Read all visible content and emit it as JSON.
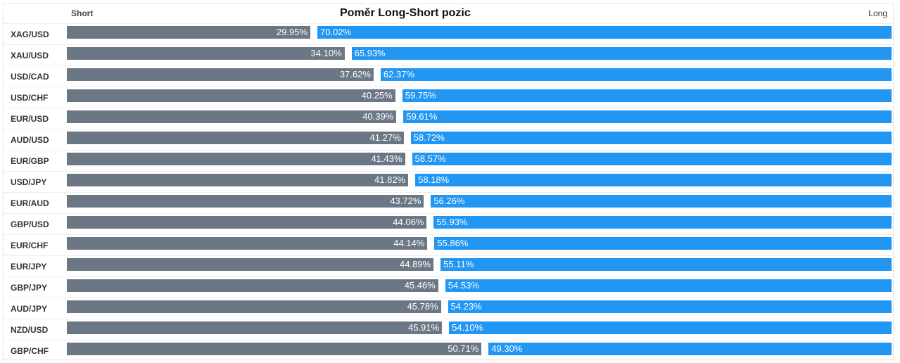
{
  "header": {
    "title": "Poměr Long-Short pozic",
    "short_label": "Short",
    "long_label": "Long"
  },
  "colors": {
    "short": "#6b7785",
    "long": "#2196f3"
  },
  "chart_data": {
    "type": "bar",
    "title": "Poměr Long-Short pozic",
    "xlabel": "",
    "ylabel": "",
    "orientation": "horizontal-stacked",
    "categories": [
      "XAG/USD",
      "XAU/USD",
      "USD/CAD",
      "USD/CHF",
      "EUR/USD",
      "AUD/USD",
      "EUR/GBP",
      "USD/JPY",
      "EUR/AUD",
      "GBP/USD",
      "EUR/CHF",
      "EUR/JPY",
      "GBP/JPY",
      "AUD/JPY",
      "NZD/USD",
      "GBP/CHF"
    ],
    "series": [
      {
        "name": "Short",
        "values": [
          29.95,
          34.1,
          37.62,
          40.25,
          40.39,
          41.27,
          41.43,
          41.82,
          43.72,
          44.06,
          44.14,
          44.89,
          45.46,
          45.78,
          45.91,
          50.71
        ]
      },
      {
        "name": "Long",
        "values": [
          70.02,
          65.93,
          62.37,
          59.75,
          59.61,
          58.72,
          58.57,
          58.18,
          56.26,
          55.93,
          55.86,
          55.11,
          54.53,
          54.23,
          54.1,
          49.3
        ]
      }
    ],
    "value_labels": {
      "short": [
        "29.95%",
        "34.10%",
        "37.62%",
        "40.25%",
        "40.39%",
        "41.27%",
        "41.43%",
        "41.82%",
        "43.72%",
        "44.06%",
        "44.14%",
        "44.89%",
        "45.46%",
        "45.78%",
        "45.91%",
        "50.71%"
      ],
      "long": [
        "70.02%",
        "65.93%",
        "62.37%",
        "59.75%",
        "59.61%",
        "58.72%",
        "58.57%",
        "58.18%",
        "56.26%",
        "55.93%",
        "55.86%",
        "55.11%",
        "54.53%",
        "54.23%",
        "54.10%",
        "49.30%"
      ]
    },
    "xlim": [
      0,
      100
    ]
  }
}
